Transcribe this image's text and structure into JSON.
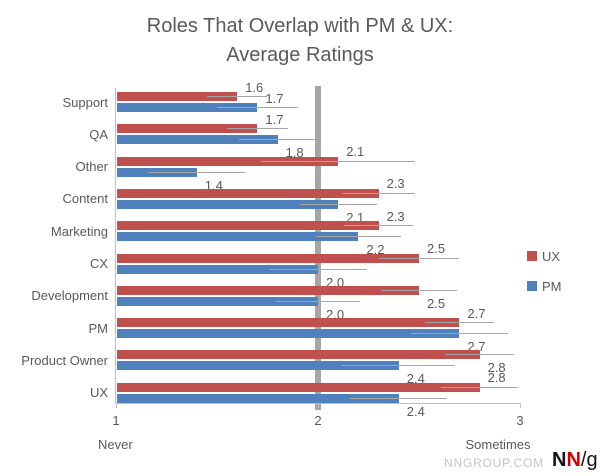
{
  "chart_data": {
    "type": "bar",
    "orientation": "horizontal",
    "title": "Roles That Overlap with PM & UX: Average Ratings",
    "title_lines": [
      "Roles That Overlap with PM & UX:",
      "Average Ratings"
    ],
    "categories": [
      "Support",
      "QA",
      "Other",
      "Content",
      "Marketing",
      "CX",
      "Development",
      "PM",
      "Product Owner",
      "UX"
    ],
    "series": [
      {
        "name": "UX",
        "color": "#C0504D",
        "values": [
          1.6,
          1.7,
          2.1,
          2.3,
          2.3,
          2.5,
          2.5,
          2.7,
          2.8,
          2.8
        ],
        "error": [
          0.15,
          0.15,
          0.38,
          0.18,
          0.17,
          0.2,
          0.19,
          0.17,
          0.17,
          0.19
        ],
        "label_side": [
          "above",
          "above",
          "above",
          "above",
          "above",
          "above",
          "below",
          "above",
          "below",
          "above"
        ]
      },
      {
        "name": "PM",
        "color": "#4F81BD",
        "values": [
          1.7,
          1.8,
          1.4,
          2.1,
          2.2,
          2.0,
          2.0,
          2.7,
          2.4,
          2.4
        ],
        "error": [
          0.2,
          0.19,
          0.24,
          0.19,
          0.21,
          0.24,
          0.21,
          0.24,
          0.28,
          0.24
        ],
        "label_side": [
          "above",
          "below",
          "below",
          "below",
          "below",
          "below",
          "below",
          "below",
          "below",
          "below"
        ]
      }
    ],
    "xlim": [
      1,
      3
    ],
    "xticks": [
      1,
      2,
      3
    ],
    "xtick_labels": [
      "1",
      "2",
      "3"
    ],
    "x_axis_labels": {
      "left": "Never",
      "right": "Sometimes"
    },
    "reference_line": {
      "value": 2,
      "color": "#A6A6A6"
    },
    "grid": false,
    "legend_position": "right"
  },
  "colors": {
    "ux_series": "#C0504D",
    "pm_series": "#4F81BD",
    "axis": "#BFBFBF",
    "error_bar": "#A6A6A6",
    "reference_line": "#A6A6A6",
    "text": "#595959",
    "footer_url": "#C3C3C3",
    "logo_red": "#D40000"
  },
  "footer": {
    "url": "NNGROUP.COM",
    "logo": {
      "part1": "N",
      "part2": "N",
      "part3": "/g"
    }
  }
}
